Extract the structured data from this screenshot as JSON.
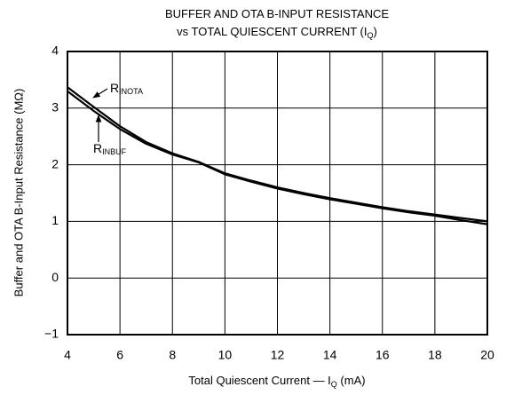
{
  "chart_data": {
    "type": "line",
    "title": [
      [
        {
          "text": "BUFFER AND OTA B-INPUT RESISTANCE"
        }
      ],
      [
        {
          "text": "vs TOTAL QUIESCENT CURRENT (I"
        },
        {
          "text": "Q",
          "sub": true
        },
        {
          "text": ")"
        }
      ]
    ],
    "xlabel": [
      {
        "text": "Total Quiescent Current — I"
      },
      {
        "text": "Q",
        "sub": true
      },
      {
        "text": " (mA)"
      }
    ],
    "ylabel": "Buffer and OTA B-Input Resistance (MΩ)",
    "x": [
      4,
      5,
      6,
      7,
      8,
      9,
      10,
      11,
      12,
      13,
      14,
      15,
      16,
      17,
      18,
      19,
      20
    ],
    "series": [
      {
        "name": "R",
        "name_sub": "INOTA",
        "color": "#000000",
        "values": [
          3.37,
          3.02,
          2.68,
          2.4,
          2.2,
          2.05,
          1.85,
          1.72,
          1.6,
          1.5,
          1.41,
          1.33,
          1.25,
          1.18,
          1.12,
          1.06,
          1.0
        ]
      },
      {
        "name": "R",
        "name_sub": "INBUF",
        "color": "#000000",
        "values": [
          3.3,
          2.95,
          2.63,
          2.37,
          2.18,
          2.04,
          1.83,
          1.7,
          1.58,
          1.48,
          1.39,
          1.31,
          1.23,
          1.16,
          1.1,
          1.02,
          0.95
        ]
      }
    ],
    "xlim": [
      4,
      20
    ],
    "xticks": [
      4,
      6,
      8,
      10,
      12,
      14,
      16,
      18,
      20
    ],
    "ylim": [
      -1,
      4
    ],
    "yticks": [
      {
        "value": -1,
        "label": "−1"
      },
      0,
      1,
      2,
      3,
      4
    ],
    "grid": true
  }
}
